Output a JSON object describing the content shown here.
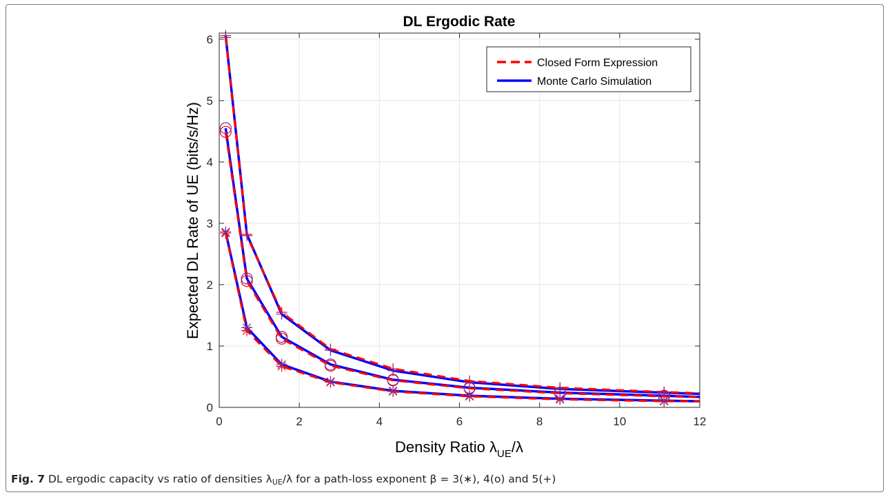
{
  "colors": {
    "closed_form": "#ff0000",
    "monte_carlo": "#0000ff",
    "markers": "#7a2a9a"
  },
  "caption": {
    "label": "Fig. 7",
    "text_before": "DL ergodic capacity vs ratio of densities ",
    "lambda_ue": "λ",
    "ue_sub": "UE",
    "ratio_rest": "/λ",
    "text_after": " for a path-loss exponent ",
    "beta": "β = 3(∗), 4(o) and 5(+)"
  },
  "chart_data": {
    "type": "line",
    "title": "DL Ergodic Rate",
    "xlabel_main": "Density Ratio λ",
    "xlabel_sub": "UE",
    "xlabel_tail": "/λ",
    "ylabel": "Expected DL Rate of UE (bits/s/Hz)",
    "xlim": [
      0,
      12
    ],
    "ylim": [
      0,
      6.1
    ],
    "xticks": [
      0,
      2,
      4,
      6,
      8,
      10,
      12
    ],
    "yticks": [
      0,
      1,
      2,
      3,
      4,
      5,
      6
    ],
    "grid": true,
    "legend_position": "top-right",
    "legend": [
      {
        "label": "Closed Form Expression",
        "style": "dashed",
        "color": "#ff0000"
      },
      {
        "label": "Monte Carlo Simulation",
        "style": "solid",
        "color": "#0000ff"
      }
    ],
    "x": [
      0.16,
      0.69,
      1.56,
      2.78,
      4.34,
      6.25,
      8.51,
      11.11,
      12
    ],
    "series": [
      {
        "marker": "+",
        "closed_form": [
          6.03,
          2.8,
          1.55,
          0.95,
          0.63,
          0.43,
          0.32,
          0.25,
          0.23
        ],
        "monte_carlo": [
          6.06,
          2.82,
          1.52,
          0.93,
          0.6,
          0.41,
          0.3,
          0.24,
          0.22
        ]
      },
      {
        "marker": "o",
        "closed_form": [
          4.49,
          2.06,
          1.12,
          0.68,
          0.44,
          0.31,
          0.23,
          0.18,
          0.17
        ],
        "monte_carlo": [
          4.55,
          2.1,
          1.15,
          0.7,
          0.45,
          0.32,
          0.24,
          0.19,
          0.17
        ]
      },
      {
        "marker": "*",
        "closed_form": [
          2.84,
          1.25,
          0.67,
          0.41,
          0.26,
          0.18,
          0.13,
          0.1,
          0.1
        ],
        "monte_carlo": [
          2.86,
          1.3,
          0.7,
          0.42,
          0.27,
          0.19,
          0.14,
          0.11,
          0.1
        ]
      }
    ]
  }
}
